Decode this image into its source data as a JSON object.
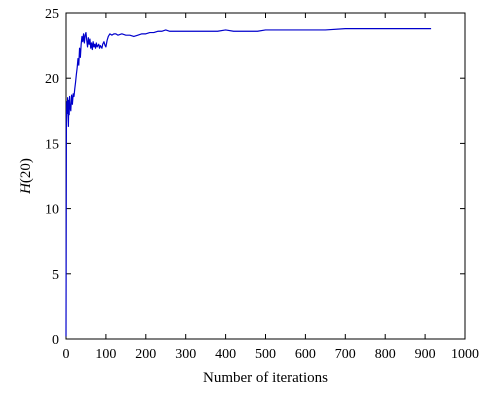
{
  "chart_data": {
    "type": "line",
    "title": "",
    "xlabel": "Number of iterations",
    "ylabel": "H(20)",
    "ylabel_italic_part": "H",
    "ylabel_rest": "(20)",
    "xlim": [
      0,
      1000
    ],
    "ylim": [
      0,
      25
    ],
    "xticks": [
      "0",
      "100",
      "200",
      "300",
      "400",
      "500",
      "600",
      "700",
      "800",
      "900",
      "1000"
    ],
    "yticks": [
      "0",
      "5",
      "10",
      "15",
      "20",
      "25"
    ],
    "grid": false,
    "legend": "none",
    "line_color": "#0000cc",
    "series": [
      {
        "x": [
          0,
          1,
          2,
          3,
          4,
          5,
          6,
          7,
          8,
          9,
          10,
          12,
          14,
          16,
          18,
          20,
          22,
          24,
          26,
          28,
          30,
          32,
          34,
          36,
          38,
          40,
          42,
          44,
          46,
          48,
          50,
          52,
          54,
          56,
          58,
          60,
          62,
          64,
          66,
          68,
          70,
          72,
          74,
          76,
          78,
          80,
          82,
          84,
          86,
          88,
          90,
          92,
          95,
          98,
          100,
          103,
          106,
          110,
          115,
          120,
          125,
          130,
          140,
          150,
          160,
          170,
          180,
          190,
          200,
          210,
          220,
          230,
          240,
          250,
          260,
          280,
          300,
          320,
          340,
          360,
          380,
          400,
          420,
          440,
          460,
          480,
          500,
          550,
          600,
          650,
          700,
          750,
          800,
          850,
          900,
          915
        ],
        "y": [
          0.2,
          16.5,
          18.2,
          17.3,
          18.5,
          17.6,
          16.3,
          18.3,
          17.2,
          18.6,
          17.8,
          17.5,
          18.7,
          18.0,
          18.8,
          18.6,
          19.2,
          19.7,
          20.3,
          20.8,
          21.5,
          21.0,
          22.3,
          21.6,
          22.6,
          23.2,
          22.8,
          23.4,
          22.7,
          23.3,
          23.5,
          22.9,
          22.4,
          23.1,
          22.6,
          23.0,
          22.3,
          22.7,
          22.2,
          22.8,
          22.4,
          22.6,
          22.3,
          22.7,
          22.4,
          22.5,
          22.6,
          22.3,
          22.5,
          22.4,
          22.3,
          22.6,
          22.8,
          22.5,
          22.4,
          22.9,
          23.2,
          23.4,
          23.3,
          23.4,
          23.4,
          23.3,
          23.4,
          23.3,
          23.3,
          23.2,
          23.3,
          23.4,
          23.4,
          23.5,
          23.5,
          23.6,
          23.6,
          23.7,
          23.6,
          23.6,
          23.6,
          23.6,
          23.6,
          23.6,
          23.6,
          23.7,
          23.6,
          23.6,
          23.6,
          23.6,
          23.7,
          23.7,
          23.7,
          23.7,
          23.8,
          23.8,
          23.8,
          23.8,
          23.8,
          23.8
        ]
      }
    ]
  }
}
